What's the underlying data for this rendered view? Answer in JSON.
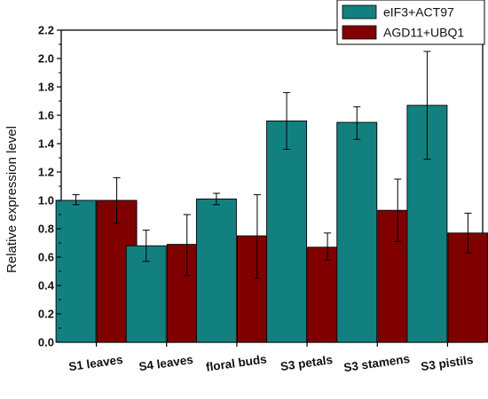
{
  "chart_data": {
    "type": "bar",
    "title": "",
    "xlabel": "",
    "ylabel": "Relative expression level",
    "ylim": [
      0,
      2.2
    ],
    "yticks": [
      "0.0",
      "0.2",
      "0.4",
      "0.6",
      "0.8",
      "1.0",
      "1.2",
      "1.4",
      "1.6",
      "1.8",
      "2.0",
      "2.2"
    ],
    "categories": [
      "S1 leaves",
      "S4 leaves",
      "floral buds",
      "S3 petals",
      "S3 stamens",
      "S3 pistils"
    ],
    "series": [
      {
        "name": "eIF3+ACT97",
        "color": "#138080",
        "values": [
          1.0,
          0.68,
          1.01,
          1.56,
          1.55,
          1.67
        ],
        "error_low": [
          0.97,
          0.57,
          0.97,
          1.36,
          1.43,
          1.29
        ],
        "error_high": [
          1.04,
          0.79,
          1.05,
          1.76,
          1.66,
          2.05
        ]
      },
      {
        "name": "AGD11+UBQ1",
        "color": "#800000",
        "values": [
          1.0,
          0.69,
          0.75,
          0.67,
          0.93,
          0.77
        ],
        "error_low": [
          0.84,
          0.47,
          0.45,
          0.58,
          0.71,
          0.63
        ],
        "error_high": [
          1.16,
          0.9,
          1.04,
          0.77,
          1.15,
          0.91
        ]
      }
    ],
    "legend_position": "top-right",
    "grid": false
  }
}
